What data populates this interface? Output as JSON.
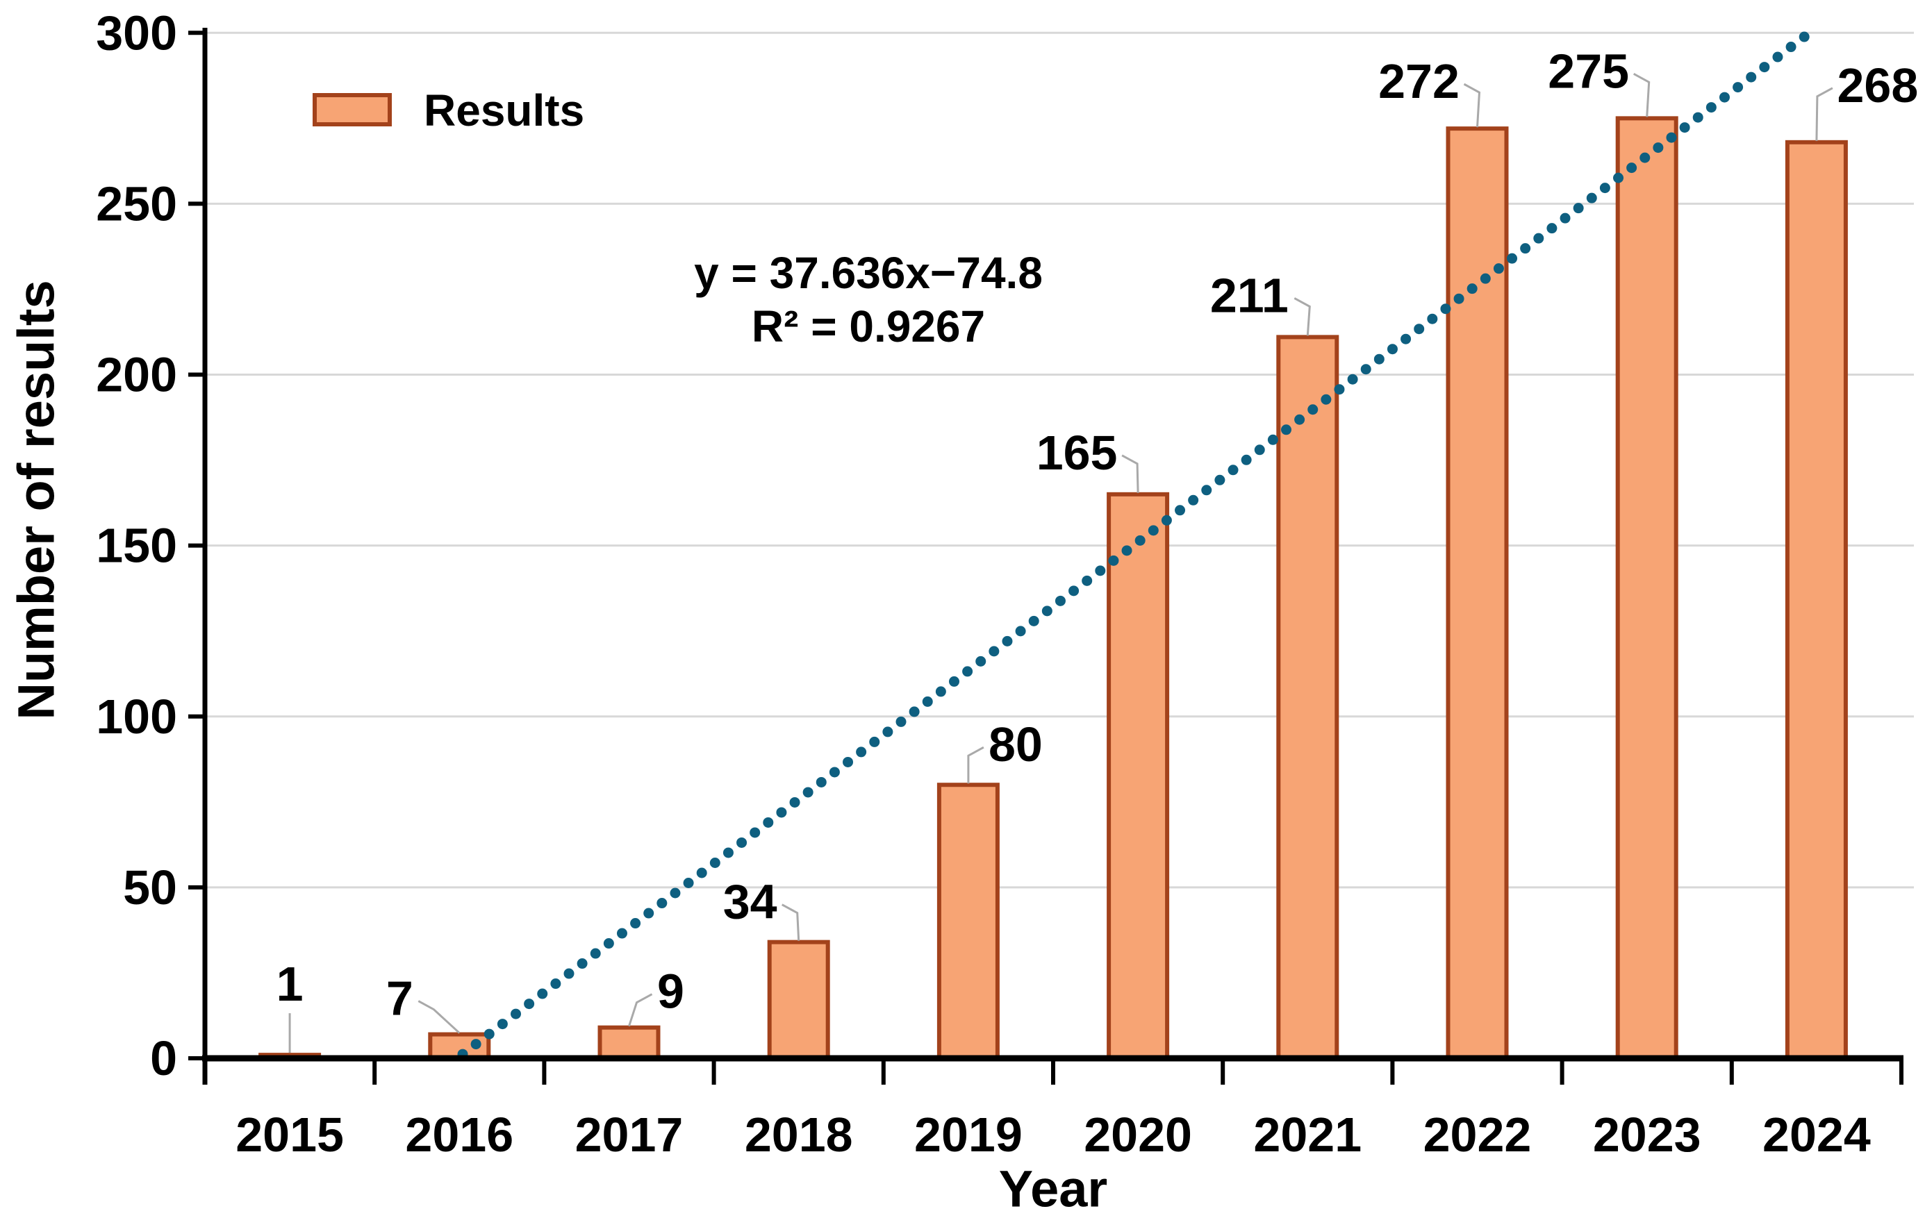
{
  "chart_data": {
    "type": "bar",
    "title": "",
    "xlabel": "Year",
    "ylabel": "Number of results",
    "categories": [
      "2015",
      "2016",
      "2017",
      "2018",
      "2019",
      "2020",
      "2021",
      "2022",
      "2023",
      "2024"
    ],
    "series": [
      {
        "name": "Results",
        "values": [
          1,
          7,
          9,
          34,
          80,
          165,
          211,
          272,
          275,
          268
        ]
      }
    ],
    "data_labels": [
      "1",
      "7",
      "9",
      "34",
      "80",
      "165",
      "211",
      "272",
      "275",
      "268"
    ],
    "ylim": [
      0,
      300
    ],
    "yticks": [
      0,
      50,
      100,
      150,
      200,
      250,
      300
    ],
    "grid": "horizontal",
    "legend_position": "top-left-inside",
    "trendline": {
      "type": "linear",
      "slope": 37.636,
      "intercept": -74.8,
      "r_squared": 0.9267,
      "equation_label": "y = 37.636x−74.8",
      "r2_label": "R² = 0.9267",
      "style": "dotted"
    },
    "colors": {
      "bar_fill": "#F7A474",
      "bar_border": "#A3421B",
      "trend_dot": "#0E5F80",
      "gridline": "#D8D8D8",
      "axis": "#000000",
      "leader_line": "#A9A9A9",
      "background": "#FFFFFF",
      "text": "#000000"
    }
  }
}
